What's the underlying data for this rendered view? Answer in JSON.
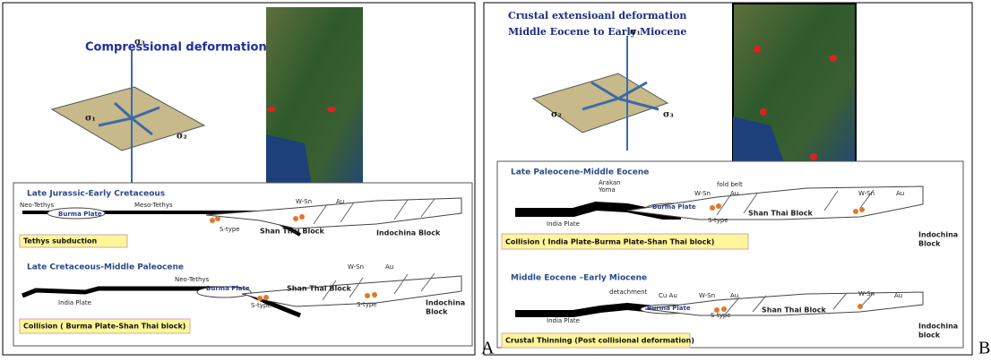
{
  "panels": [
    {
      "label": "A",
      "title": [
        "Compressional deformation"
      ],
      "stress": [
        "σ₃",
        "σ₁",
        "σ₂"
      ],
      "sections": [
        {
          "title": "Late Jurassic-Early Cretaceous",
          "labels": [
            "Neo-Tethys",
            "Meso-Tethys",
            "Burma Plate",
            "W-Sn",
            "Au",
            "S-type",
            "Shan Thai Block",
            "Indochina Block"
          ],
          "caption": "Tethys subduction"
        },
        {
          "title": "Late Cretaceous-Middle Paleocene",
          "labels": [
            "Neo-Tethys",
            "W-Sn",
            "Au",
            "India Plate",
            "Burma Plate",
            "S-type",
            "Shan Thai Block",
            "S-type",
            "Indochina",
            "Block"
          ],
          "caption": "Collision ( Burma Plate-Shan Thai block)"
        }
      ]
    },
    {
      "label": "B",
      "title": [
        "Crustal extensioanl deformation",
        "Middle Eocene to Early Miocene"
      ],
      "stress": [
        "σ₁",
        "σ₂",
        "σ₃"
      ],
      "sections": [
        {
          "title": "Late Paleocene-Middle Eocene",
          "labels": [
            "Arakan",
            "Yoma",
            "fold belt",
            "W-Sn",
            "Au",
            "India Plate",
            "Burma Plate",
            "S-type",
            "Shan Thai Block",
            "W-Sn",
            "Au",
            "Indochina",
            "Block"
          ],
          "caption": "Collision ( India Plate-Burma Plate-Shan Thai block)"
        },
        {
          "title": "Middle Eocene –Early Miocene",
          "labels": [
            "detachment",
            "Cu Au",
            "W-Sn",
            "Au",
            "W-Sn",
            "Au",
            "India Plate",
            "Burma Plate",
            "S-type",
            "Shan Thai Block",
            "Indochina",
            "block"
          ],
          "caption": "Crustal Thinning (Post collisional deformation)"
        }
      ]
    }
  ]
}
